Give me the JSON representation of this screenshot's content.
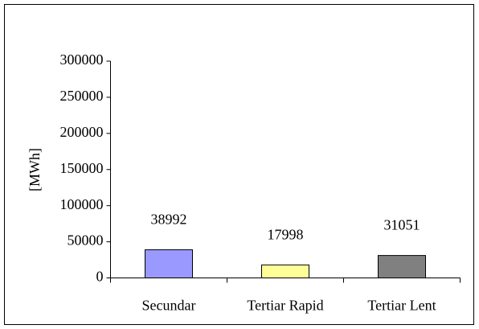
{
  "chart_data": {
    "type": "bar",
    "y_label": "[MWh]",
    "categories": [
      "Secundar",
      "Tertiar Rapid",
      "Tertiar Lent"
    ],
    "values": [
      38992,
      17998,
      31051
    ],
    "colors": [
      "#9999ff",
      "#ffff99",
      "#808080"
    ],
    "ylim": [
      0,
      300000
    ],
    "yticks": [
      0,
      50000,
      100000,
      150000,
      200000,
      250000,
      300000
    ],
    "grid": false,
    "data_labels": true
  }
}
